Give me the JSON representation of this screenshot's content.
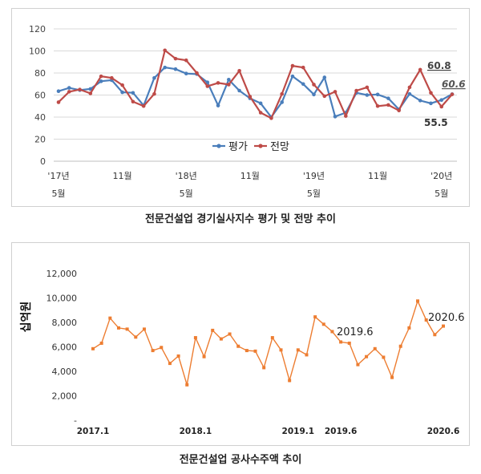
{
  "chart_data": [
    {
      "type": "line",
      "title": "전문건설업 경기실사지수 평가 및 전망 추이",
      "ylim": [
        0,
        120
      ],
      "yticks": [
        "0",
        "20",
        "40",
        "60",
        "80",
        "100",
        "120"
      ],
      "grid": true,
      "legend_position": "bottom-center",
      "x_tick_labels": [
        {
          "index": 0,
          "line1": "'17년",
          "line2": "5월"
        },
        {
          "index": 6,
          "line1": "11월",
          "line2": ""
        },
        {
          "index": 12,
          "line1": "'18년",
          "line2": "5월"
        },
        {
          "index": 18,
          "line1": "11월",
          "line2": ""
        },
        {
          "index": 24,
          "line1": "'19년",
          "line2": "5월"
        },
        {
          "index": 30,
          "line1": "11월",
          "line2": ""
        },
        {
          "index": 36,
          "line1": "'20년",
          "line2": "5월"
        }
      ],
      "series": [
        {
          "name": "평가",
          "color": "#4a7ebb",
          "values": [
            63.5,
            66.5,
            64.5,
            65.5,
            72.5,
            73.5,
            62.5,
            62,
            50.5,
            75.5,
            85,
            83.5,
            79.5,
            79,
            71.5,
            50.5,
            74,
            64,
            57,
            52.5,
            40,
            53.5,
            77,
            70,
            60.5,
            76,
            40.5,
            44,
            62,
            60,
            60.5,
            57,
            47,
            61,
            55,
            52.5,
            55.5,
            60.8
          ]
        },
        {
          "name": "전망",
          "color": "#be4b48",
          "values": [
            53.5,
            63,
            65,
            61.5,
            77,
            75.5,
            69,
            54,
            50,
            61,
            100.5,
            93,
            91.5,
            80,
            68,
            71,
            69.5,
            82,
            58.5,
            44,
            39,
            61,
            86.5,
            85,
            69.5,
            59,
            63,
            41,
            64,
            67,
            50,
            51,
            46,
            67,
            83,
            62,
            49.5,
            60.6
          ]
        }
      ],
      "annotations": [
        {
          "text": "60.8",
          "index": 37,
          "series": "평가"
        },
        {
          "text": "60.6",
          "index": 37,
          "series": "전망"
        },
        {
          "text": "55.5",
          "index": 36,
          "series": "평가"
        }
      ]
    },
    {
      "type": "line",
      "title": "전문건설업 공사수주액 추이",
      "ylabel": "십억원",
      "ylim": [
        0,
        12000
      ],
      "yticks": [
        "-",
        "2,000",
        "4,000",
        "6,000",
        "8,000",
        "10,000",
        "12,000"
      ],
      "grid": false,
      "x_tick_labels": [
        {
          "index": 0,
          "label": "2017.1"
        },
        {
          "index": 12,
          "label": "2018.1"
        },
        {
          "index": 24,
          "label": "2019.1"
        },
        {
          "index": 29,
          "label": "2019.6"
        },
        {
          "index": 41,
          "label": "2020.6"
        }
      ],
      "series": [
        {
          "name": "",
          "color": "#ed7d31",
          "values": [
            5850,
            6300,
            8350,
            7550,
            7450,
            6800,
            7450,
            5700,
            5950,
            4650,
            5250,
            2900,
            6750,
            5200,
            7350,
            6650,
            7050,
            6050,
            5700,
            5650,
            4300,
            6750,
            5750,
            3250,
            5750,
            5350,
            8450,
            7850,
            7250,
            6400,
            6300,
            4550,
            5200,
            5850,
            5150,
            3500,
            6050,
            7550,
            9750,
            8200,
            7000,
            7700
          ]
        }
      ],
      "annotations": [
        {
          "text": "2019.6",
          "index": 29
        },
        {
          "text": "2020.6",
          "index": 41
        }
      ]
    }
  ]
}
